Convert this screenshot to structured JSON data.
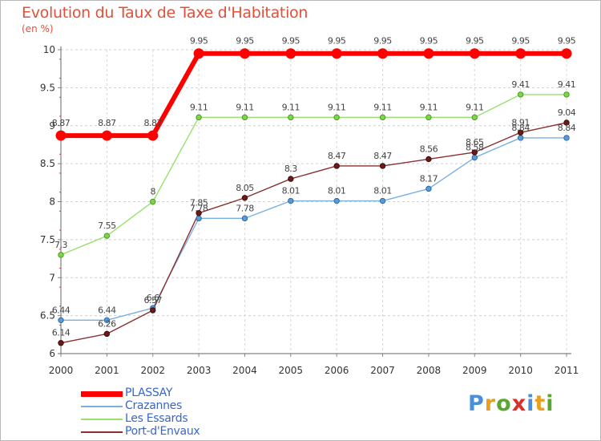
{
  "title": "Evolution du Taux de Taxe d'Habitation",
  "unit_label": "(en %)",
  "logo": {
    "letters": [
      "P",
      "r",
      "o",
      "x",
      "i",
      "t",
      "i"
    ],
    "colors": [
      "#4a90d9",
      "#e8a020",
      "#5aa832",
      "#d9302c",
      "#4a90d9",
      "#e8a020",
      "#5aa832"
    ]
  },
  "chart_data": {
    "type": "line",
    "title": "Evolution du Taux de Taxe d'Habitation",
    "ylabel": "(en %)",
    "xlabel": "",
    "x": [
      "2000",
      "2001",
      "2002",
      "2003",
      "2004",
      "2005",
      "2006",
      "2007",
      "2008",
      "2009",
      "2010",
      "2011"
    ],
    "ylim": [
      6,
      10
    ],
    "yticks": [
      "6",
      "6.5",
      "7",
      "7.5",
      "8",
      "8.5",
      "9",
      "9.5",
      "10"
    ],
    "grid": "horizontal dashed",
    "legend_position": "bottom-left",
    "series": [
      {
        "name": "PLASSAY",
        "color": "#ff0000",
        "values": [
          8.87,
          8.87,
          8.87,
          9.95,
          9.95,
          9.95,
          9.95,
          9.95,
          9.95,
          9.95,
          9.95,
          9.95
        ],
        "labels": [
          "8.87",
          "8.87",
          "8.87",
          "9.95",
          "9.95",
          "9.95",
          "9.95",
          "9.95",
          "9.95",
          "9.95",
          "9.95",
          "9.95"
        ]
      },
      {
        "name": "Crazannes",
        "color": "#5b9bd5",
        "values": [
          6.44,
          6.44,
          6.6,
          7.78,
          7.78,
          8.01,
          8.01,
          8.01,
          8.17,
          8.58,
          8.84,
          8.84
        ],
        "labels": [
          "6.44",
          "6.44",
          "6.6",
          "7.78",
          "7.78",
          "8.01",
          "8.01",
          "8.01",
          "8.17",
          "8.58",
          "8.84",
          "8.84"
        ]
      },
      {
        "name": "Les Essards",
        "color": "#7dd64a",
        "values": [
          7.3,
          7.55,
          8.0,
          9.11,
          9.11,
          9.11,
          9.11,
          9.11,
          9.11,
          9.11,
          9.41,
          9.41
        ],
        "labels": [
          "7.3",
          "7.55",
          "8",
          "9.11",
          "9.11",
          "9.11",
          "9.11",
          "9.11",
          "9.11",
          "9.11",
          "9.41",
          "9.41"
        ]
      },
      {
        "name": "Port-d'Envaux",
        "color": "#6b1a1a",
        "values": [
          6.14,
          6.26,
          6.57,
          7.85,
          8.05,
          8.3,
          8.47,
          8.47,
          8.56,
          8.65,
          8.91,
          9.04
        ],
        "labels": [
          "6.14",
          "6.26",
          "6.57",
          "7.85",
          "8.05",
          "8.3",
          "8.47",
          "8.47",
          "8.56",
          "8.65",
          "8.91",
          "9.04"
        ]
      }
    ]
  }
}
